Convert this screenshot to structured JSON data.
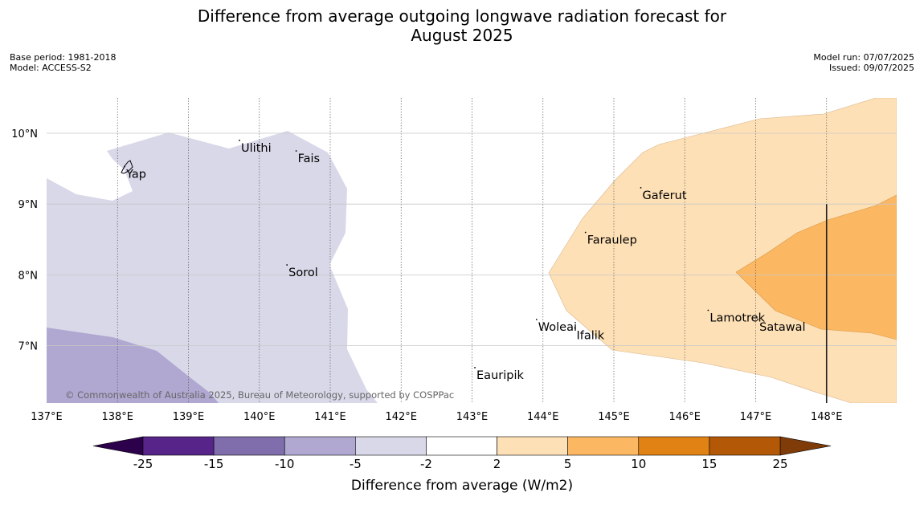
{
  "title": {
    "line1": "Difference from average outgoing longwave radiation forecast for",
    "line2": "August 2025"
  },
  "meta_left": {
    "base_period": "Base period: 1981-2018",
    "model": "Model: ACCESS-S2"
  },
  "meta_right": {
    "model_run": "Model run: 07/07/2025",
    "issued": "Issued: 09/07/2025"
  },
  "copyright": "© Commonwealth of Australia 2025, Bureau of Meteorology, supported by COSPPac",
  "map": {
    "lon_range": [
      137,
      149.0
    ],
    "lat_range": [
      6.2,
      10.5
    ],
    "lon_ticks": [
      137,
      138,
      139,
      140,
      141,
      142,
      143,
      144,
      145,
      146,
      147,
      148
    ],
    "lon_labels": [
      "137°E",
      "138°E",
      "139°E",
      "140°E",
      "141°E",
      "142°E",
      "143°E",
      "144°E",
      "145°E",
      "146°E",
      "147°E",
      "148°E"
    ],
    "lat_ticks": [
      7,
      8,
      9,
      10
    ],
    "lat_labels": [
      "7°N",
      "8°N",
      "9°N",
      "10°N"
    ],
    "places": [
      {
        "name": "Yap",
        "lon": 138.1,
        "lat": 9.53
      },
      {
        "name": "Ulithi",
        "lon": 139.72,
        "lat": 9.9
      },
      {
        "name": "Fais",
        "lon": 140.52,
        "lat": 9.75
      },
      {
        "name": "Gaferut",
        "lon": 145.38,
        "lat": 9.23
      },
      {
        "name": "Faraulep",
        "lon": 144.6,
        "lat": 8.6
      },
      {
        "name": "Sorol",
        "lon": 140.39,
        "lat": 8.14
      },
      {
        "name": "Woleai",
        "lon": 143.91,
        "lat": 7.37
      },
      {
        "name": "Ifalik",
        "lon": 144.45,
        "lat": 7.25
      },
      {
        "name": "Lamotrek",
        "lon": 146.33,
        "lat": 7.5
      },
      {
        "name": "Satawal",
        "lon": 147.03,
        "lat": 7.37
      },
      {
        "name": "Eauripik",
        "lon": 143.04,
        "lat": 6.69
      }
    ]
  },
  "colorbar": {
    "label": "Difference from average (W/m2)",
    "ticks": [
      "-25",
      "-15",
      "-10",
      "-5",
      "-2",
      "2",
      "5",
      "10",
      "15",
      "25"
    ],
    "colors": [
      "#572589",
      "#7f6eab",
      "#b0a8d1",
      "#d8d8e9",
      "#ffffff",
      "#fee0b6",
      "#fbb762",
      "#e08214",
      "#b35806"
    ],
    "extend_low_color": "#2d004b",
    "extend_high_color": "#7f3b08"
  },
  "colors": {
    "grid": "#c8c8c8",
    "meridian": "#555555"
  }
}
